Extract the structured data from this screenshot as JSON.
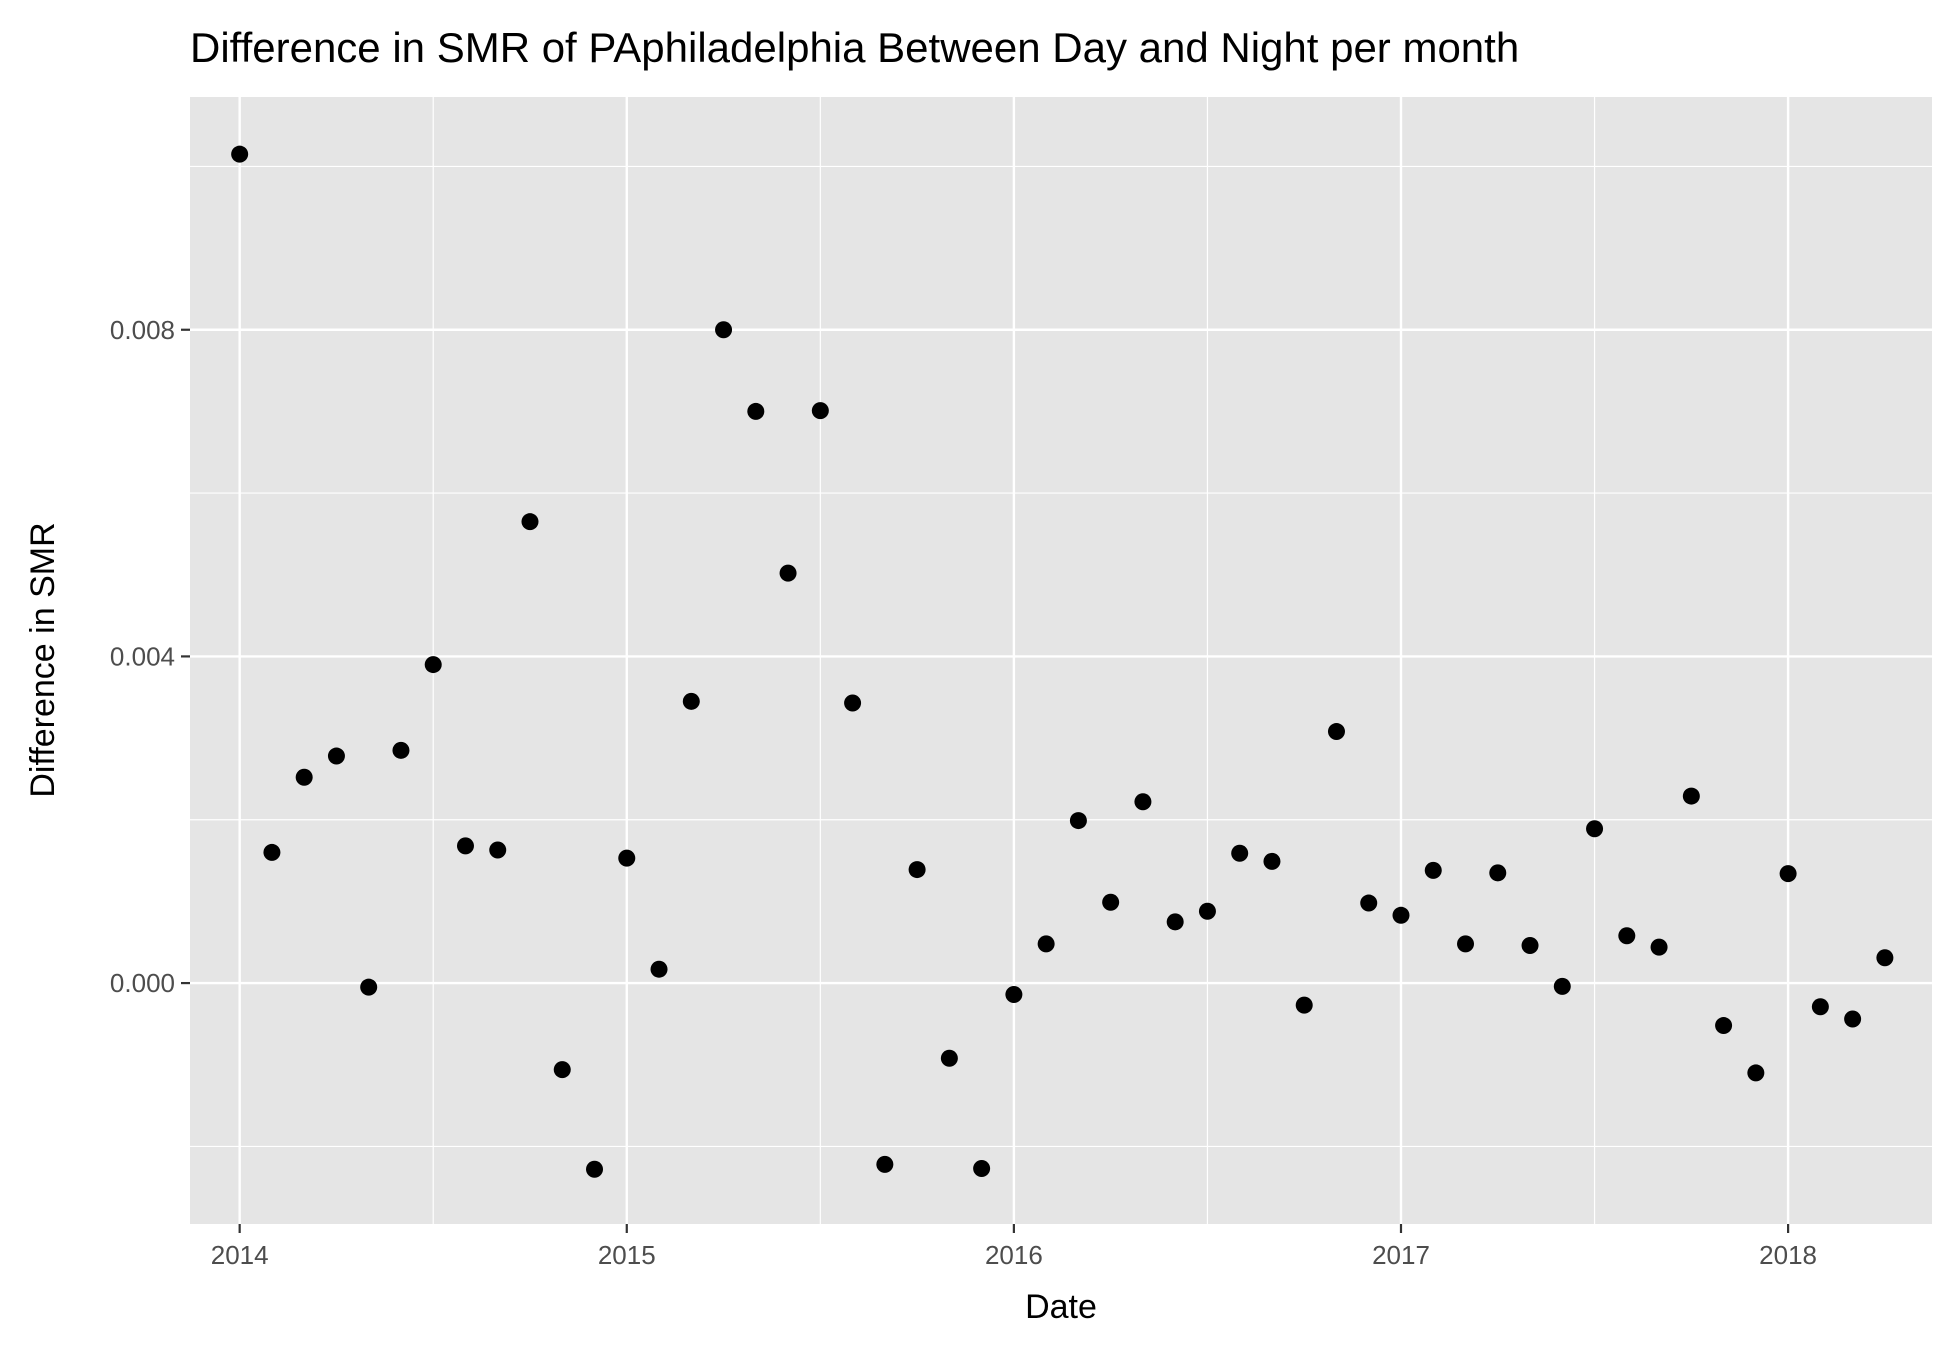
{
  "chart_data": {
    "type": "scatter",
    "title": "Difference in SMR of PAphiladelphia Between Day and Night per month",
    "xlabel": "Date",
    "ylabel": "Difference in SMR",
    "x_tick_labels": [
      "2014",
      "2015",
      "2016",
      "2017",
      "2018"
    ],
    "y_tick_labels": [
      "0.000",
      "0.004",
      "0.008"
    ],
    "y_ticks": [
      0.0,
      0.004,
      0.008
    ],
    "xlim": [
      "2013-11-15",
      "2018-05-15"
    ],
    "ylim": [
      -0.00295,
      0.01085
    ],
    "grid": true,
    "legend": "none",
    "background_color": "#e5e5e5",
    "grid_color": "#ffffff",
    "point_color": "#000000",
    "series": [
      {
        "x": [
          "2014-01",
          "2014-02",
          "2014-03",
          "2014-04",
          "2014-05",
          "2014-06",
          "2014-07",
          "2014-08",
          "2014-09",
          "2014-10",
          "2014-11",
          "2014-12",
          "2015-01",
          "2015-02",
          "2015-03",
          "2015-04",
          "2015-05",
          "2015-06",
          "2015-07",
          "2015-08",
          "2015-09",
          "2015-10",
          "2015-11",
          "2015-12",
          "2016-01",
          "2016-02",
          "2016-03",
          "2016-04",
          "2016-05",
          "2016-06",
          "2016-07",
          "2016-08",
          "2016-09",
          "2016-10",
          "2016-11",
          "2016-12",
          "2017-01",
          "2017-02",
          "2017-03",
          "2017-04",
          "2017-05",
          "2017-06",
          "2017-07",
          "2017-08",
          "2017-09",
          "2017-10",
          "2017-11",
          "2017-12",
          "2018-01",
          "2018-02",
          "2018-03",
          "2018-04"
        ],
        "y": [
          0.01015,
          0.0016,
          0.00252,
          0.00278,
          -5e-05,
          0.00285,
          0.0039,
          0.00168,
          0.00163,
          0.00565,
          -0.00106,
          -0.00228,
          0.00153,
          0.00017,
          0.00345,
          0.008,
          0.007,
          0.00502,
          0.00701,
          0.00343,
          -0.00222,
          0.00139,
          -0.00092,
          -0.00227,
          -0.00014,
          0.00048,
          0.00199,
          0.00099,
          0.00222,
          0.00075,
          0.00088,
          0.00159,
          0.00149,
          -0.00027,
          0.00308,
          0.00098,
          0.00083,
          0.00138,
          0.00048,
          0.00135,
          0.00046,
          -4e-05,
          0.00189,
          0.00058,
          0.00044,
          0.00229,
          -0.00052,
          -0.0011,
          0.00134,
          -0.00029,
          -0.00044,
          0.00031
        ]
      }
    ]
  }
}
